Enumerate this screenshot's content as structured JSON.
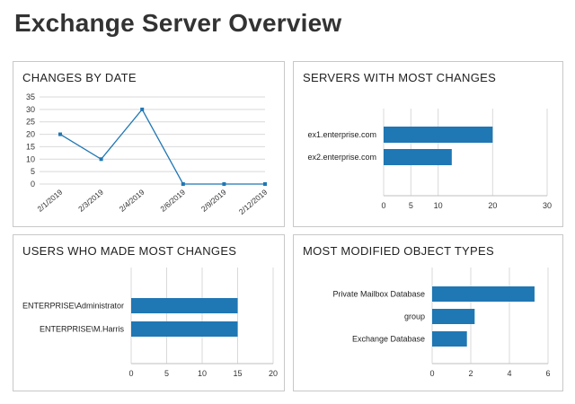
{
  "page": {
    "title": "Exchange Server Overview"
  },
  "colors": {
    "accent": "#1f77b4",
    "grid": "#d9d9d9",
    "axis": "#bfbfbf"
  },
  "chart_data": [
    {
      "id": "changes-by-date",
      "type": "line",
      "title": "CHANGES BY DATE",
      "categories": [
        "2/1/2019",
        "2/3/2019",
        "2/4/2019",
        "2/6/2019",
        "2/9/2019",
        "2/12/2019"
      ],
      "values": [
        20,
        10,
        30,
        0,
        0,
        0
      ],
      "ylim": [
        0,
        35
      ],
      "yticks": [
        0,
        5,
        10,
        15,
        20,
        25,
        30,
        35
      ],
      "grid": true,
      "xlabel": "",
      "ylabel": ""
    },
    {
      "id": "servers-with-most-changes",
      "type": "bar",
      "orientation": "horizontal",
      "title": "SERVERS WITH MOST CHANGES",
      "categories": [
        "ex1.enterprise.com",
        "ex2.enterprise.com"
      ],
      "values": [
        20,
        12.5
      ],
      "xlim": [
        0,
        30
      ],
      "xticks": [
        0,
        5,
        10,
        20,
        30
      ],
      "grid": true
    },
    {
      "id": "users-who-made-most-changes",
      "type": "bar",
      "orientation": "horizontal",
      "title": "USERS WHO MADE MOST CHANGES",
      "categories": [
        "ENTERPRISE\\Administrator",
        "ENTERPRISE\\M.Harris"
      ],
      "values": [
        15,
        15
      ],
      "xlim": [
        0,
        20
      ],
      "xticks": [
        0,
        5,
        10,
        15,
        20
      ],
      "grid": true
    },
    {
      "id": "most-modified-object-types",
      "type": "bar",
      "orientation": "horizontal",
      "title": "MOST MODIFIED OBJECT TYPES",
      "categories": [
        "Private Mailbox Database",
        "group",
        "Exchange Database"
      ],
      "values": [
        5.3,
        2.2,
        1.8
      ],
      "xlim": [
        0,
        6
      ],
      "xticks": [
        0,
        2,
        4,
        6
      ],
      "grid": true
    }
  ]
}
